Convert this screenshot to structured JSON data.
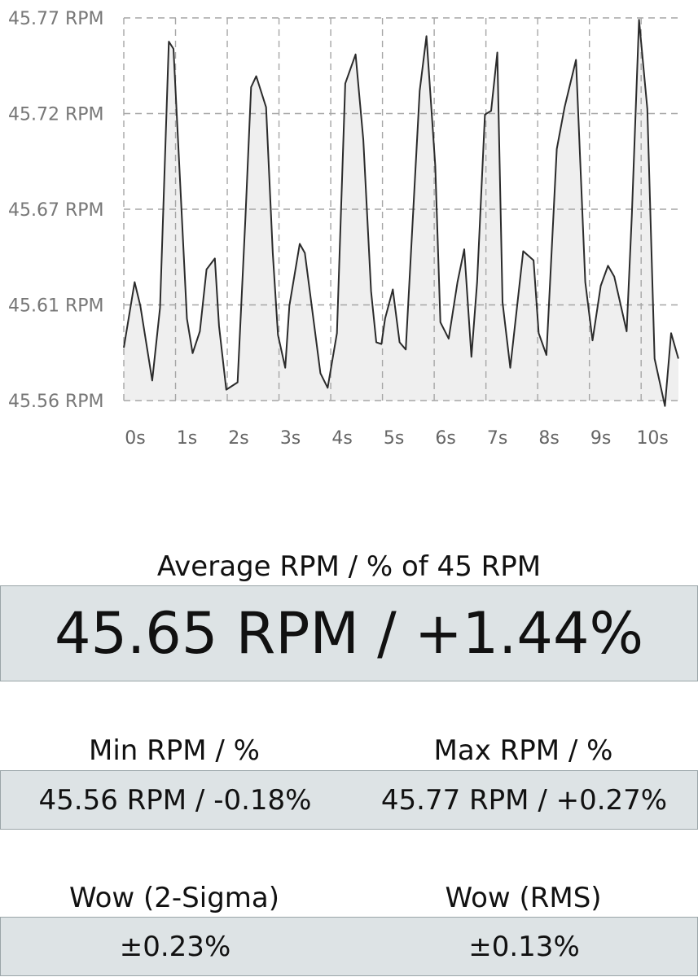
{
  "chart_data": {
    "type": "area",
    "x_unit": "s",
    "xlim": [
      0,
      10.8
    ],
    "ylim": [
      45.56,
      45.77
    ],
    "y_ticks": [
      "45.77 RPM",
      "45.72 RPM",
      "45.67 RPM",
      "45.61 RPM",
      "45.56 RPM"
    ],
    "x_ticks": [
      "0s",
      "1s",
      "2s",
      "3s",
      "4s",
      "5s",
      "6s",
      "7s",
      "8s",
      "9s",
      "10s"
    ],
    "grid": true,
    "series": [
      {
        "x": [
          0.0,
          0.21,
          0.32,
          0.55,
          0.7,
          0.87,
          0.96,
          1.22,
          1.33,
          1.47,
          1.6,
          1.76,
          1.84,
          1.98,
          2.2,
          2.35,
          2.46,
          2.56,
          2.75,
          2.88,
          2.98,
          3.12,
          3.2,
          3.4,
          3.5,
          3.8,
          3.94,
          4.12,
          4.28,
          4.48,
          4.63,
          4.78,
          4.88,
          4.98,
          5.05,
          5.2,
          5.33,
          5.45,
          5.72,
          5.85,
          6.02,
          6.12,
          6.28,
          6.45,
          6.58,
          6.72,
          6.83,
          6.98,
          7.1,
          7.22,
          7.32,
          7.47,
          7.72,
          7.92,
          8.02,
          8.17,
          8.37,
          8.52,
          8.74,
          8.92,
          9.06,
          9.22,
          9.36,
          9.48,
          9.72,
          9.82,
          9.96,
          10.12,
          10.26,
          10.46,
          10.58,
          10.72
        ],
        "y": [
          45.589,
          45.625,
          45.612,
          45.571,
          45.611,
          45.757,
          45.753,
          45.605,
          45.586,
          45.598,
          45.632,
          45.638,
          45.601,
          45.566,
          45.57,
          45.66,
          45.732,
          45.738,
          45.721,
          45.641,
          45.596,
          45.578,
          45.612,
          45.646,
          45.641,
          45.575,
          45.567,
          45.597,
          45.734,
          45.75,
          45.703,
          45.62,
          45.592,
          45.591,
          45.605,
          45.621,
          45.592,
          45.588,
          45.73,
          45.76,
          45.689,
          45.603,
          45.594,
          45.625,
          45.643,
          45.584,
          45.625,
          45.717,
          45.719,
          45.751,
          45.614,
          45.578,
          45.642,
          45.637,
          45.597,
          45.585,
          45.698,
          45.721,
          45.747,
          45.625,
          45.593,
          45.623,
          45.634,
          45.628,
          45.598,
          45.662,
          45.769,
          45.72,
          45.583,
          45.557,
          45.597,
          45.583
        ]
      }
    ]
  },
  "average": {
    "label": "Average RPM / % of 45 RPM",
    "value": "45.65 RPM / +1.44%"
  },
  "min": {
    "label": "Min RPM / %",
    "value": "45.56 RPM / -0.18%"
  },
  "max": {
    "label": "Max RPM / %",
    "value": "45.77 RPM / +0.27%"
  },
  "wow_2sigma": {
    "label": "Wow (2-Sigma)",
    "value": "±0.23%"
  },
  "wow_rms": {
    "label": "Wow (RMS)",
    "value": "±0.13%"
  },
  "colors": {
    "box_background": "#dde3e5",
    "line": "#2b2b2b",
    "area": "#efefef"
  }
}
